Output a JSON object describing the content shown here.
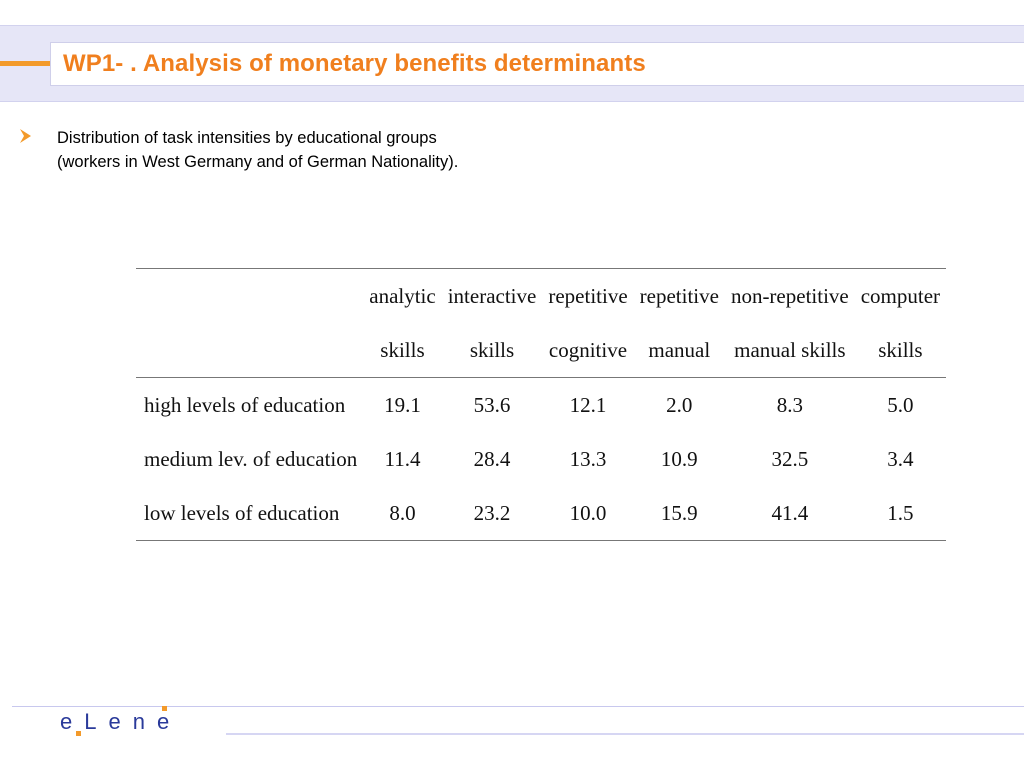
{
  "slide": {
    "title": "WP1- . Analysis of monetary benefits determinants",
    "bullet_text": "Distribution of task intensities by educational groups (workers in West Germany and of German Nationality)."
  },
  "table": {
    "columns": [
      {
        "line1": "analytic",
        "line2": "skills"
      },
      {
        "line1": "interactive",
        "line2": "skills"
      },
      {
        "line1": "repetitive",
        "line2": "cognitive"
      },
      {
        "line1": "repetitive",
        "line2": "manual"
      },
      {
        "line1": "non-repetitive",
        "line2": "manual skills"
      },
      {
        "line1": "computer",
        "line2": "skills"
      }
    ],
    "rows": [
      {
        "label": "high levels of education",
        "values": [
          "19.1",
          "53.6",
          "12.1",
          "2.0",
          "8.3",
          "5.0"
        ]
      },
      {
        "label": "medium lev. of education",
        "values": [
          "11.4",
          "28.4",
          "13.3",
          "10.9",
          "32.5",
          "3.4"
        ]
      },
      {
        "label": "low levels of education",
        "values": [
          "8.0",
          "23.2",
          "10.0",
          "15.9",
          "41.4",
          "1.5"
        ]
      }
    ]
  },
  "footer": {
    "logo_text": "eLene"
  },
  "colors": {
    "accent": "#f07f1e",
    "header_band": "#e6e6f7",
    "logo_blue": "#2a3a9a"
  }
}
